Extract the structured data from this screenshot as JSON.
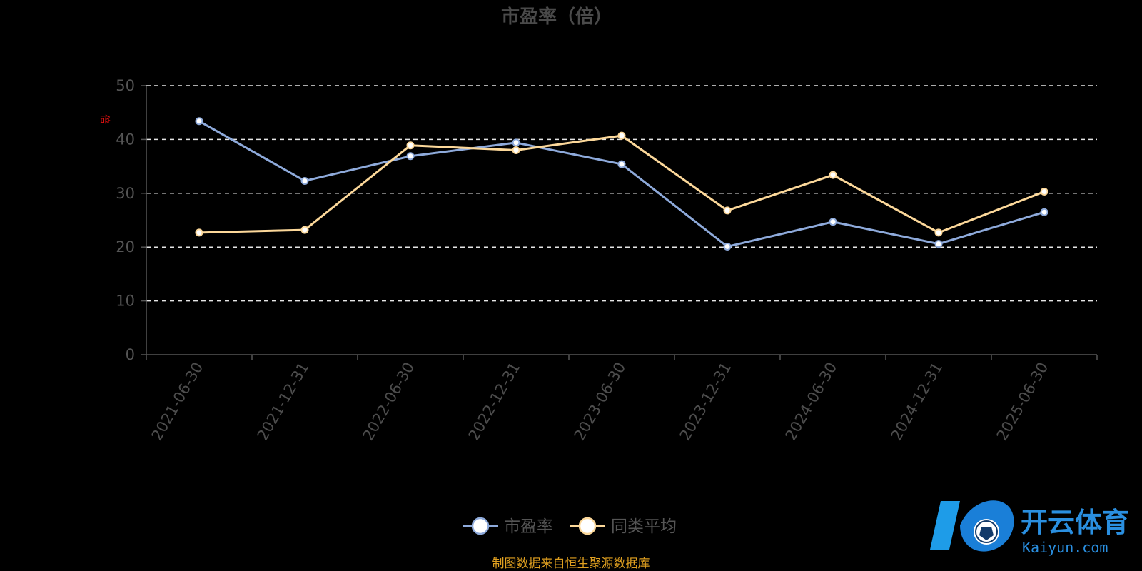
{
  "chart_data": {
    "type": "line",
    "title": "市盈率（倍）",
    "unit_label": "倍",
    "categories": [
      "2021-06-30",
      "2021-12-31",
      "2022-06-30",
      "2022-12-31",
      "2023-06-30",
      "2023-12-31",
      "2024-06-30",
      "2024-12-31",
      "2025-06-30"
    ],
    "yticks": [
      0,
      10,
      20,
      30,
      40,
      50
    ],
    "ylim": [
      0,
      50
    ],
    "grid": true,
    "series": [
      {
        "name": "市盈率",
        "color": "#8eaadb",
        "values": [
          43.4,
          32.3,
          36.9,
          39.4,
          35.4,
          20.1,
          24.7,
          20.6,
          26.5
        ]
      },
      {
        "name": "同类平均",
        "color": "#fcd89a",
        "values": [
          22.7,
          23.2,
          38.9,
          38.0,
          40.7,
          26.8,
          33.4,
          22.7,
          30.3
        ]
      }
    ],
    "legend_position": "bottom-center"
  },
  "footer": {
    "source_text": "制图数据来自恒生聚源数据库",
    "source_color": "#e0a020"
  },
  "watermark": {
    "brand": "开云体育",
    "domain": "Kaiyun.com",
    "color": "#2a8fe0"
  }
}
